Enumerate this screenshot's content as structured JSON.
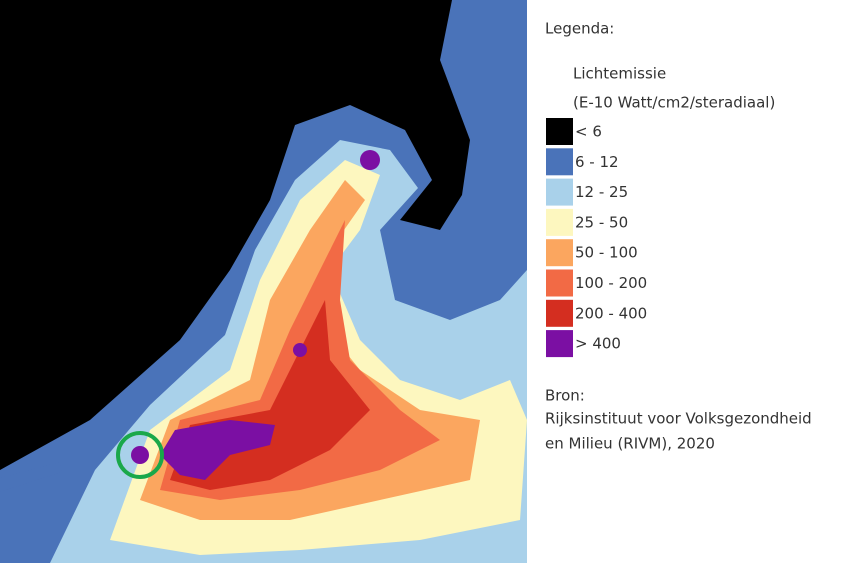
{
  "legend": {
    "title": "Legenda:",
    "quantity": "Lichtemissie",
    "unit": "(E-10 Watt/cm2/steradiaal)",
    "items": [
      {
        "label": "< 6",
        "color": "#000000"
      },
      {
        "label": "6 - 12",
        "color": "#4a73b9"
      },
      {
        "label": "12 - 25",
        "color": "#a9d1ea"
      },
      {
        "label": "25 - 50",
        "color": "#fdf7bf"
      },
      {
        "label": "50 - 100",
        "color": "#fba65f"
      },
      {
        "label": "100 - 200",
        "color": "#f26a45"
      },
      {
        "label": "200 - 400",
        "color": "#d42e20"
      },
      {
        "label": "> 400",
        "color": "#7b0fa3"
      }
    ]
  },
  "source": {
    "label": "Bron:",
    "lines": [
      "Rijksinstituut voor Volksgezondheid",
      "en Milieu (RIVM), 2020"
    ]
  }
}
